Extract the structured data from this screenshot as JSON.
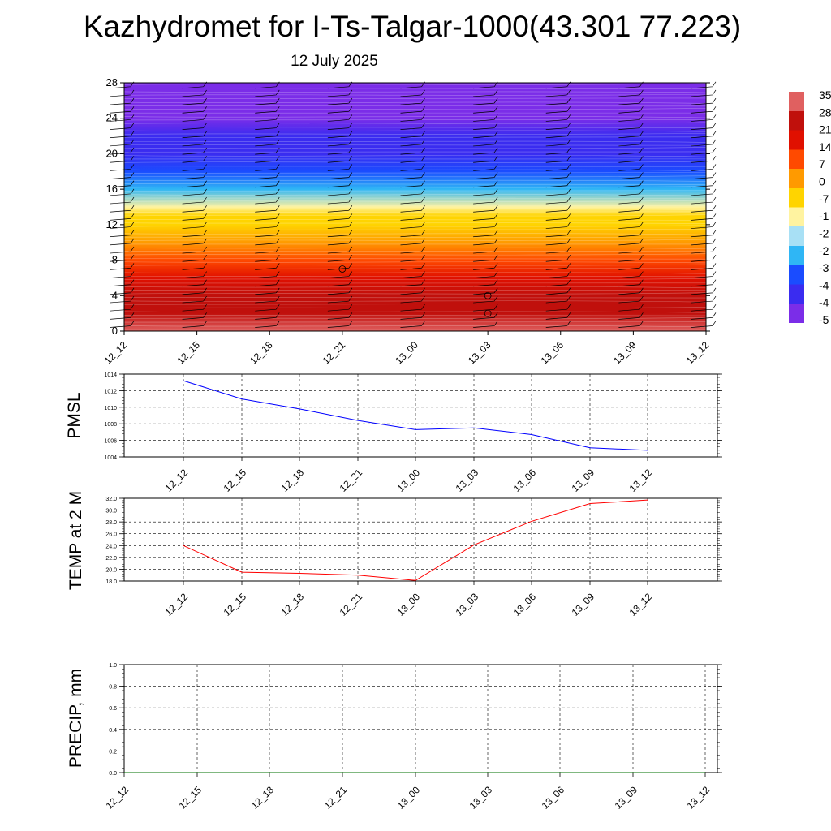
{
  "title": "Kazhydromet for I-Ts-Talgar-1000(43.301 77.223)",
  "subtitle": "12 July 2025",
  "time_labels": [
    "12_12",
    "12_15",
    "12_18",
    "12_21",
    "13_00",
    "13_03",
    "13_06",
    "13_09",
    "13_12"
  ],
  "chart_data": [
    {
      "type": "heatmap",
      "title": "",
      "xlabel": "",
      "ylabel": "",
      "x": [
        "12_12",
        "12_15",
        "12_18",
        "12_21",
        "13_00",
        "13_03",
        "13_06",
        "13_09",
        "13_12"
      ],
      "ylim": [
        0,
        28
      ],
      "yticks": [
        0,
        4,
        8,
        12,
        16,
        20,
        24,
        28
      ],
      "colorbar_labels": [
        "35",
        "28",
        "21",
        "14",
        "7",
        "0",
        "-7",
        "-1",
        "-2",
        "-2",
        "-3",
        "-4",
        "-4",
        "-5"
      ],
      "colorbar_range": [
        -56,
        35
      ],
      "colors": [
        "#7b2de8",
        "#3a2cf0",
        "#1a4cff",
        "#2fb6f5",
        "#a8e0f5",
        "#fff3a0",
        "#ffd400",
        "#ff9a00",
        "#ff4a00",
        "#e01000",
        "#c0100c",
        "#e06060"
      ],
      "value_profile": {
        "levels": [
          0,
          2,
          4,
          6,
          8,
          10,
          12,
          13,
          14,
          16,
          18,
          20,
          22,
          24,
          26,
          28
        ],
        "values": [
          28,
          24,
          20,
          14,
          8,
          2,
          -5,
          -10,
          -18,
          -26,
          -34,
          -42,
          -48,
          -52,
          -54,
          -55
        ]
      },
      "markers": [
        {
          "x": "12_21",
          "y": 7
        },
        {
          "x": "13_03",
          "y": 4
        },
        {
          "x": "13_03",
          "y": 2
        }
      ],
      "grid": false
    },
    {
      "type": "line",
      "ylabel": "PMSL",
      "categories": [
        "12_12",
        "12_15",
        "12_18",
        "12_21",
        "13_00",
        "13_03",
        "13_06",
        "13_09",
        "13_12"
      ],
      "series": [
        {
          "values": [
            1013.2,
            1011.0,
            1009.8,
            1008.4,
            1007.3,
            1007.5,
            1006.7,
            1005.1,
            1004.8
          ],
          "color": "#0000ff"
        }
      ],
      "ylim": [
        1004,
        1014
      ],
      "yticks": [
        "1004",
        "1006",
        "1008",
        "1010",
        "1012",
        "1014"
      ],
      "grid": true
    },
    {
      "type": "line",
      "ylabel": "TEMP at 2 M",
      "categories": [
        "12_12",
        "12_15",
        "12_18",
        "12_21",
        "13_00",
        "13_03",
        "13_06",
        "13_09",
        "13_12"
      ],
      "series": [
        {
          "values": [
            24.0,
            19.5,
            19.3,
            19.0,
            18.1,
            24.1,
            28.1,
            31.1,
            31.7
          ],
          "color": "#ff0000"
        }
      ],
      "ylim": [
        18,
        32
      ],
      "yticks": [
        "18.0",
        "20.0",
        "22.0",
        "24.0",
        "26.0",
        "28.0",
        "30.0",
        "32.0"
      ],
      "grid": true
    },
    {
      "type": "line",
      "ylabel": "PRECIP, mm",
      "categories": [
        "12_12",
        "12_15",
        "12_18",
        "12_21",
        "13_00",
        "13_03",
        "13_06",
        "13_09",
        "13_12"
      ],
      "series": [
        {
          "values": [
            0,
            0,
            0,
            0,
            0,
            0,
            0,
            0,
            0
          ],
          "color": "#007000"
        }
      ],
      "ylim": [
        0,
        1
      ],
      "yticks": [
        "0.0",
        "0.2",
        "0.4",
        "0.6",
        "0.8",
        "1.0"
      ],
      "grid": true
    }
  ]
}
